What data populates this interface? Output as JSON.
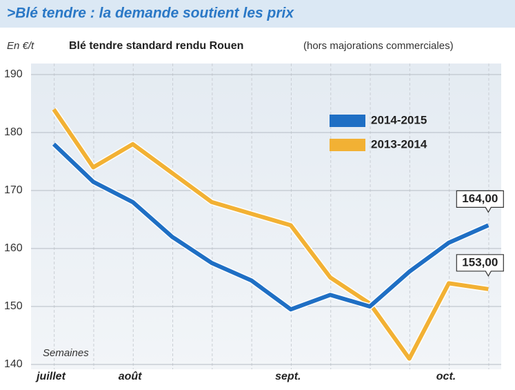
{
  "chart_data": {
    "type": "line",
    "title": ">Blé tendre : la demande soutient les prix",
    "unit_label": "En €/t",
    "subtitle": "Blé tendre standard rendu Rouen",
    "subtitle_note": "(hors majorations commerciales)",
    "x_label": "Semaines",
    "categories": [
      "juillet",
      null,
      "août",
      null,
      null,
      null,
      "sept.",
      null,
      null,
      null,
      "oct.",
      null
    ],
    "series": [
      {
        "name": "2014-2015",
        "color": "#1f6fc4",
        "values": [
          178,
          171.5,
          168,
          162,
          157.5,
          154.5,
          149.5,
          152,
          150,
          156,
          161,
          164
        ],
        "value_labels": [
          null,
          null,
          null,
          null,
          null,
          null,
          null,
          null,
          null,
          null,
          null,
          "164,00"
        ]
      },
      {
        "name": "2013-2014",
        "color": "#f2b134",
        "values": [
          184,
          174,
          178,
          173,
          168,
          166,
          164,
          155,
          150.5,
          141,
          154,
          153
        ],
        "value_labels": [
          null,
          null,
          null,
          null,
          null,
          null,
          null,
          null,
          null,
          null,
          null,
          "153,00"
        ]
      }
    ],
    "ylim": [
      140,
      190
    ],
    "yticks": [
      140,
      150,
      160,
      170,
      180,
      190
    ],
    "grid": true
  }
}
